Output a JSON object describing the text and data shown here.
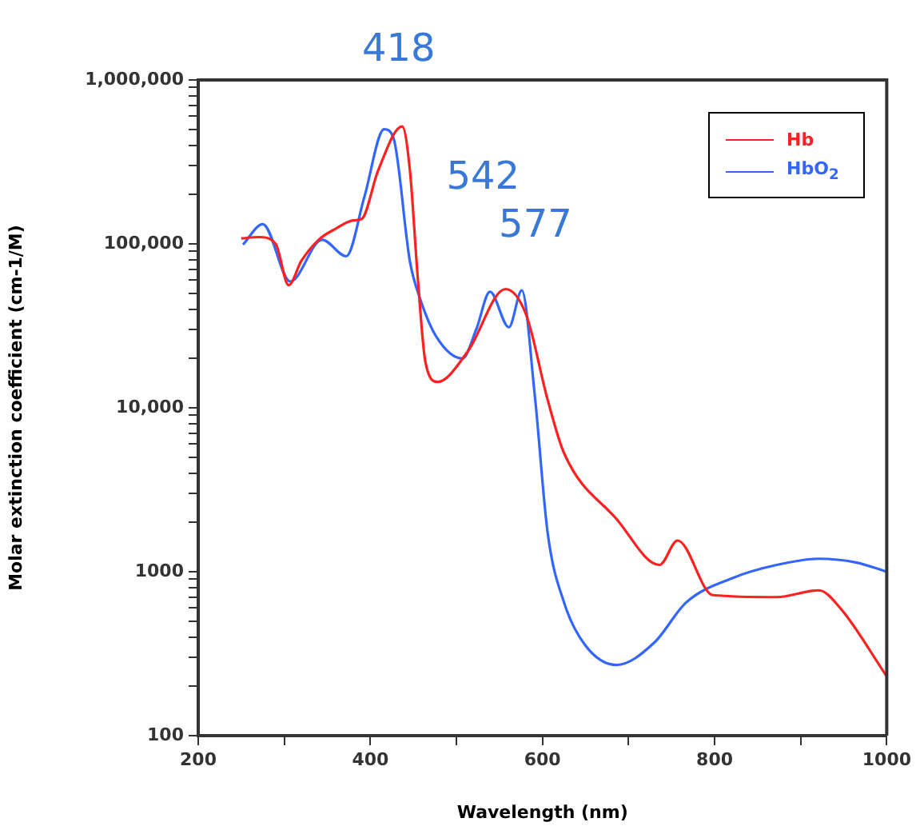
{
  "chart_data": {
    "type": "line",
    "xlabel": "Wavelength (nm)",
    "ylabel": "Molar extinction coefficient (cm-1/M)",
    "log": "y",
    "grid": false,
    "legend": "top right",
    "marker": "none",
    "line_style": "solid",
    "xlim": [
      200,
      1000
    ],
    "xticks": [
      200,
      {
        "value": 300,
        "label": null
      },
      400,
      {
        "value": 500,
        "label": null
      },
      600,
      {
        "value": 700,
        "label": null
      },
      800,
      {
        "value": 900,
        "label": null
      },
      1000
    ],
    "ylim": [
      100,
      1000000
    ],
    "yticks": [
      100,
      {
        "value": 200,
        "label": null
      },
      {
        "value": 300,
        "label": null
      },
      {
        "value": 400,
        "label": null
      },
      {
        "value": 500,
        "label": null
      },
      {
        "value": 600,
        "label": null
      },
      {
        "value": 700,
        "label": null
      },
      {
        "value": 800,
        "label": null
      },
      {
        "value": 900,
        "label": null
      },
      1000,
      {
        "value": 2000,
        "label": null
      },
      {
        "value": 3000,
        "label": null
      },
      {
        "value": 4000,
        "label": null
      },
      {
        "value": 5000,
        "label": null
      },
      {
        "value": 6000,
        "label": null
      },
      {
        "value": 7000,
        "label": null
      },
      {
        "value": 8000,
        "label": null
      },
      {
        "value": 9000,
        "label": null
      },
      {
        "value": 10000,
        "label": "10,000"
      },
      {
        "value": 20000,
        "label": null
      },
      {
        "value": 30000,
        "label": null
      },
      {
        "value": 40000,
        "label": null
      },
      {
        "value": 50000,
        "label": null
      },
      {
        "value": 60000,
        "label": null
      },
      {
        "value": 70000,
        "label": null
      },
      {
        "value": 80000,
        "label": null
      },
      {
        "value": 90000,
        "label": null
      },
      {
        "value": 100000,
        "label": "100,000"
      },
      {
        "value": 200000,
        "label": null
      },
      {
        "value": 300000,
        "label": null
      },
      {
        "value": 400000,
        "label": null
      },
      {
        "value": 500000,
        "label": null
      },
      {
        "value": 600000,
        "label": null
      },
      {
        "value": 700000,
        "label": null
      },
      {
        "value": 800000,
        "label": null
      },
      {
        "value": 900000,
        "label": null
      },
      {
        "value": 1000000,
        "label": "1,000,000"
      }
    ],
    "series": [
      {
        "name": "Hb",
        "color": "#ff2020",
        "x": [
          250,
          270,
          290,
          305,
          320,
          340,
          360,
          380,
          390,
          409,
          437,
          446,
          455,
          464,
          478,
          513,
          557,
          581,
          606,
          625,
          686,
          736,
          757,
          798,
          872,
          921,
          946,
          1000
        ],
        "values": [
          108000,
          110000,
          100000,
          56000,
          79000,
          106000,
          124000,
          139000,
          142000,
          280000,
          521000,
          280000,
          63000,
          19000,
          14400,
          22000,
          53000,
          37000,
          11200,
          5300,
          2100,
          1100,
          1550,
          720,
          700,
          770,
          600,
          230
        ]
      },
      {
        "name": "HbO$_{2}$",
        "color": "#3366ff",
        "x": [
          252,
          275,
          307,
          344,
          372,
          393,
          416,
          427,
          446,
          458,
          477,
          507,
          523,
          539,
          561,
          576,
          591,
          606,
          625,
          649,
          686,
          730,
          767,
          822,
          872,
          921,
          964,
          1000
        ],
        "values": [
          99000,
          132000,
          59000,
          106000,
          84000,
          193000,
          500000,
          440000,
          78000,
          46000,
          27000,
          20000,
          30000,
          51000,
          31000,
          52000,
          12000,
          1730,
          650,
          360,
          270,
          370,
          650,
          920,
          1100,
          1200,
          1140,
          1000
        ]
      }
    ],
    "annotations": [
      {
        "text": "418",
        "x": 418,
        "y": 500000
      },
      {
        "text": "542",
        "x": 542,
        "y": 51000
      },
      {
        "text": "577",
        "x": 577,
        "y": 52000
      }
    ]
  }
}
